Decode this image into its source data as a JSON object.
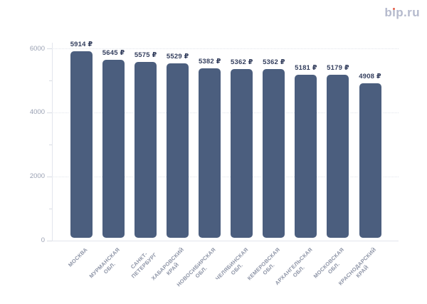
{
  "logo": {
    "text": "bip.ru"
  },
  "colors": {
    "bar": "#4b5e7e",
    "value_label": "#333e5d",
    "axis_label": "#9aa1b3",
    "x_label": "#8d94a6",
    "grid": "#e2e5ec",
    "axis_line": "#e2e5ec",
    "tick": "#d8dce4",
    "logo_text": "#b5bacd",
    "logo_dot": "#e45d49",
    "background": "#ffffff"
  },
  "chart_data": {
    "type": "bar",
    "title": "",
    "xlabel": "",
    "ylabel": "",
    "categories": [
      "МОСКВА",
      "МУРМАНСКАЯ\nОБЛ.",
      "САНКТ-\nПЕТЕРБУРГ",
      "ХАБАРОВСКИЙ\nКРАЙ",
      "НОВОСИБИРСКАЯ\nОБЛ.",
      "ЧЕЛЯБИНСКАЯ\nОБЛ.",
      "КЕМЕРОВСКАЯ\nОБЛ.",
      "АРХАНГЕЛЬСКАЯ\nОБЛ.",
      "МОСКОВСКАЯ\nОБЛ.",
      "КРАСНОДАРСКИЙ\nКРАЙ"
    ],
    "values": [
      5914,
      5645,
      5575,
      5529,
      5382,
      5362,
      5362,
      5181,
      5179,
      4908
    ],
    "value_suffix": " ₽",
    "ylim": [
      0,
      6000
    ],
    "yticks": [
      0,
      2000,
      4000,
      6000
    ],
    "yticks_minor": [
      1000,
      3000,
      5000
    ],
    "grid": "horizontal-dotted",
    "legend": "none",
    "bar_labels_position": "above"
  }
}
